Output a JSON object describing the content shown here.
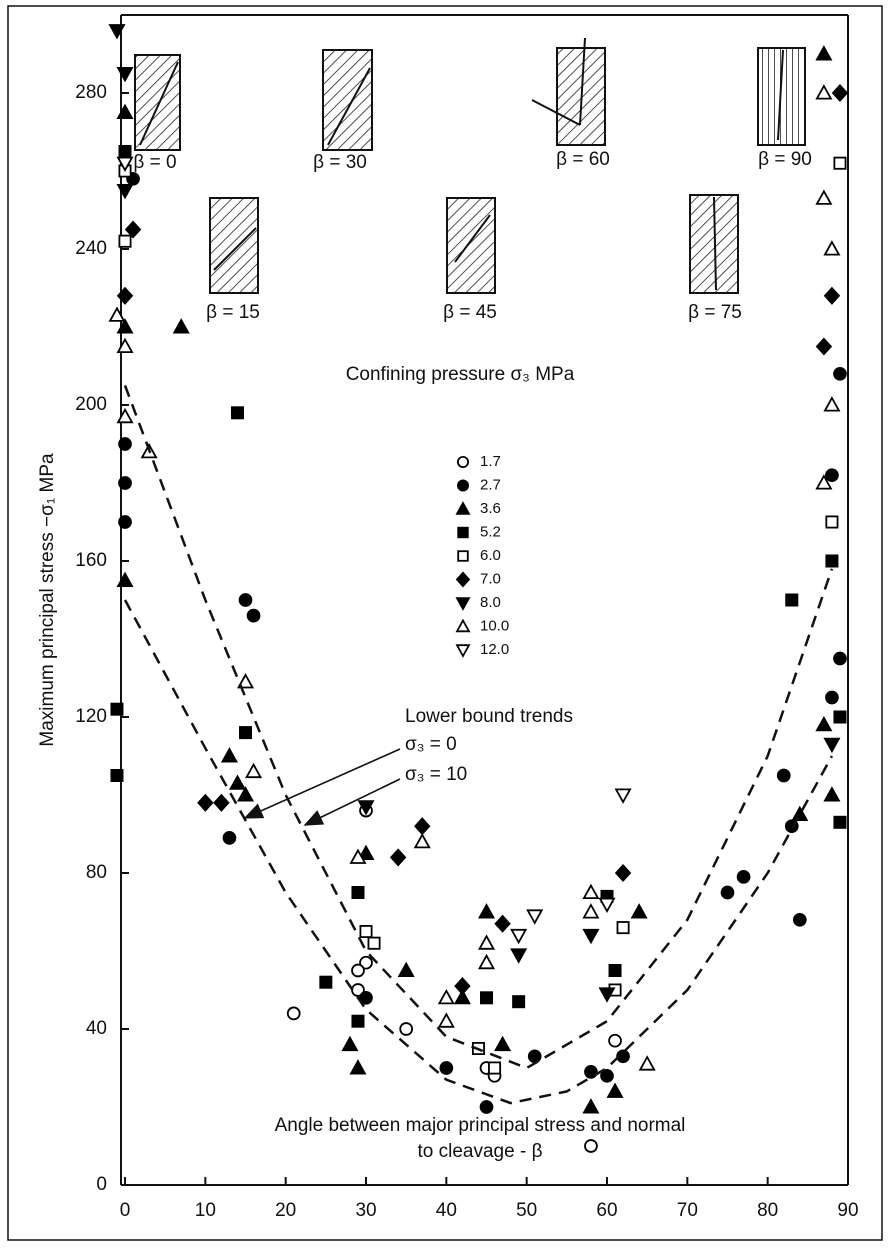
{
  "chart_data": {
    "type": "scatter",
    "ylabel": "Maximum principal stress −σ₁ MPa",
    "xlabel": [
      "Angle between major principal stress and normal",
      "to cleavage - β"
    ],
    "legend_title": "Confining pressure σ₃ MPa",
    "annotation": "Lower bound trends",
    "specimen_labels": [
      "β = 0",
      "β = 15",
      "β = 30",
      "β = 45",
      "β = 60",
      "β = 75",
      "β = 90"
    ],
    "xlim": [
      -0.5,
      90
    ],
    "ylim": [
      0,
      300
    ],
    "xticks": [
      0,
      10,
      20,
      30,
      40,
      50,
      60,
      70,
      80,
      90
    ],
    "yticks": [
      0,
      40,
      80,
      120,
      160,
      200,
      240,
      280
    ],
    "series": [
      {
        "name": "1.7",
        "marker": "circle-open",
        "color": "#000000",
        "x": [
          30,
          29,
          30,
          35,
          21,
          45,
          46,
          58,
          61,
          29
        ],
        "values": [
          57,
          50,
          96,
          40,
          44,
          30,
          28,
          10,
          37,
          55
        ]
      },
      {
        "name": "2.7",
        "marker": "circle",
        "color": "#000000",
        "x": [
          1,
          0,
          0,
          0,
          15,
          16,
          13,
          30,
          40,
          45,
          51,
          58,
          60,
          62,
          75,
          77,
          82,
          83,
          84,
          88,
          89,
          88,
          89
        ],
        "values": [
          258,
          190,
          180,
          170,
          150,
          146,
          89,
          48,
          30,
          20,
          33,
          29,
          28,
          33,
          75,
          79,
          105,
          92,
          68,
          125,
          135,
          182,
          208
        ]
      },
      {
        "name": "3.6",
        "marker": "triangle",
        "color": "#000000",
        "x": [
          0,
          0,
          0,
          7,
          13,
          14,
          15,
          28,
          29,
          30,
          35,
          42,
          45,
          47,
          58,
          61,
          64,
          87,
          87,
          88,
          84
        ],
        "values": [
          275,
          220,
          155,
          220,
          110,
          103,
          100,
          36,
          30,
          85,
          55,
          48,
          70,
          36,
          20,
          24,
          70,
          290,
          118,
          100,
          95
        ]
      },
      {
        "name": "5.2",
        "marker": "square",
        "color": "#000000",
        "x": [
          -1,
          -1,
          0,
          14,
          15,
          25,
          29,
          29,
          45,
          49,
          60,
          61,
          83,
          88,
          89,
          89
        ],
        "values": [
          122,
          105,
          265,
          198,
          116,
          52,
          75,
          42,
          48,
          47,
          74,
          55,
          150,
          160,
          120,
          93
        ]
      },
      {
        "name": "6.0",
        "marker": "square-open",
        "color": "#000000",
        "x": [
          0,
          0,
          30,
          31,
          44,
          46,
          61,
          62,
          88,
          89
        ],
        "values": [
          260,
          242,
          65,
          62,
          35,
          30,
          50,
          66,
          170,
          262
        ]
      },
      {
        "name": "7.0",
        "marker": "diamond",
        "color": "#000000",
        "x": [
          1,
          0,
          10,
          12,
          34,
          37,
          42,
          47,
          62,
          87,
          88,
          89
        ],
        "values": [
          245,
          228,
          98,
          98,
          84,
          92,
          51,
          67,
          80,
          215,
          228,
          280
        ]
      },
      {
        "name": "8.0",
        "marker": "triangle-down",
        "color": "#000000",
        "x": [
          -1,
          0,
          0,
          30,
          49,
          58,
          60,
          88
        ],
        "values": [
          296,
          285,
          255,
          97,
          59,
          64,
          49,
          113
        ]
      },
      {
        "name": "10.0",
        "marker": "triangle-open",
        "color": "#000000",
        "x": [
          -1,
          0,
          0,
          3,
          15,
          16,
          29,
          37,
          40,
          40,
          45,
          45,
          58,
          58,
          65,
          87,
          87,
          88,
          88,
          87
        ],
        "values": [
          223,
          215,
          197,
          188,
          129,
          106,
          84,
          88,
          48,
          42,
          62,
          57,
          75,
          70,
          31,
          280,
          253,
          240,
          200,
          180
        ]
      },
      {
        "name": "12.0",
        "marker": "triangle-down-open",
        "color": "#000000",
        "x": [
          0,
          51,
          49,
          62,
          60
        ],
        "values": [
          262,
          69,
          64,
          100,
          72
        ]
      }
    ],
    "trends": [
      {
        "name": "σ₃ = 0",
        "x": [
          0,
          10,
          20,
          30,
          40,
          50,
          60,
          70,
          80,
          88
        ],
        "values": [
          205,
          150,
          100,
          60,
          38,
          30,
          42,
          68,
          110,
          158
        ]
      },
      {
        "name": "σ₃ = 10",
        "x": [
          0,
          10,
          20,
          30,
          40,
          48,
          55,
          60,
          70,
          80,
          88
        ],
        "values": [
          150,
          112,
          75,
          45,
          27,
          21,
          24,
          30,
          50,
          80,
          110
        ]
      }
    ]
  }
}
